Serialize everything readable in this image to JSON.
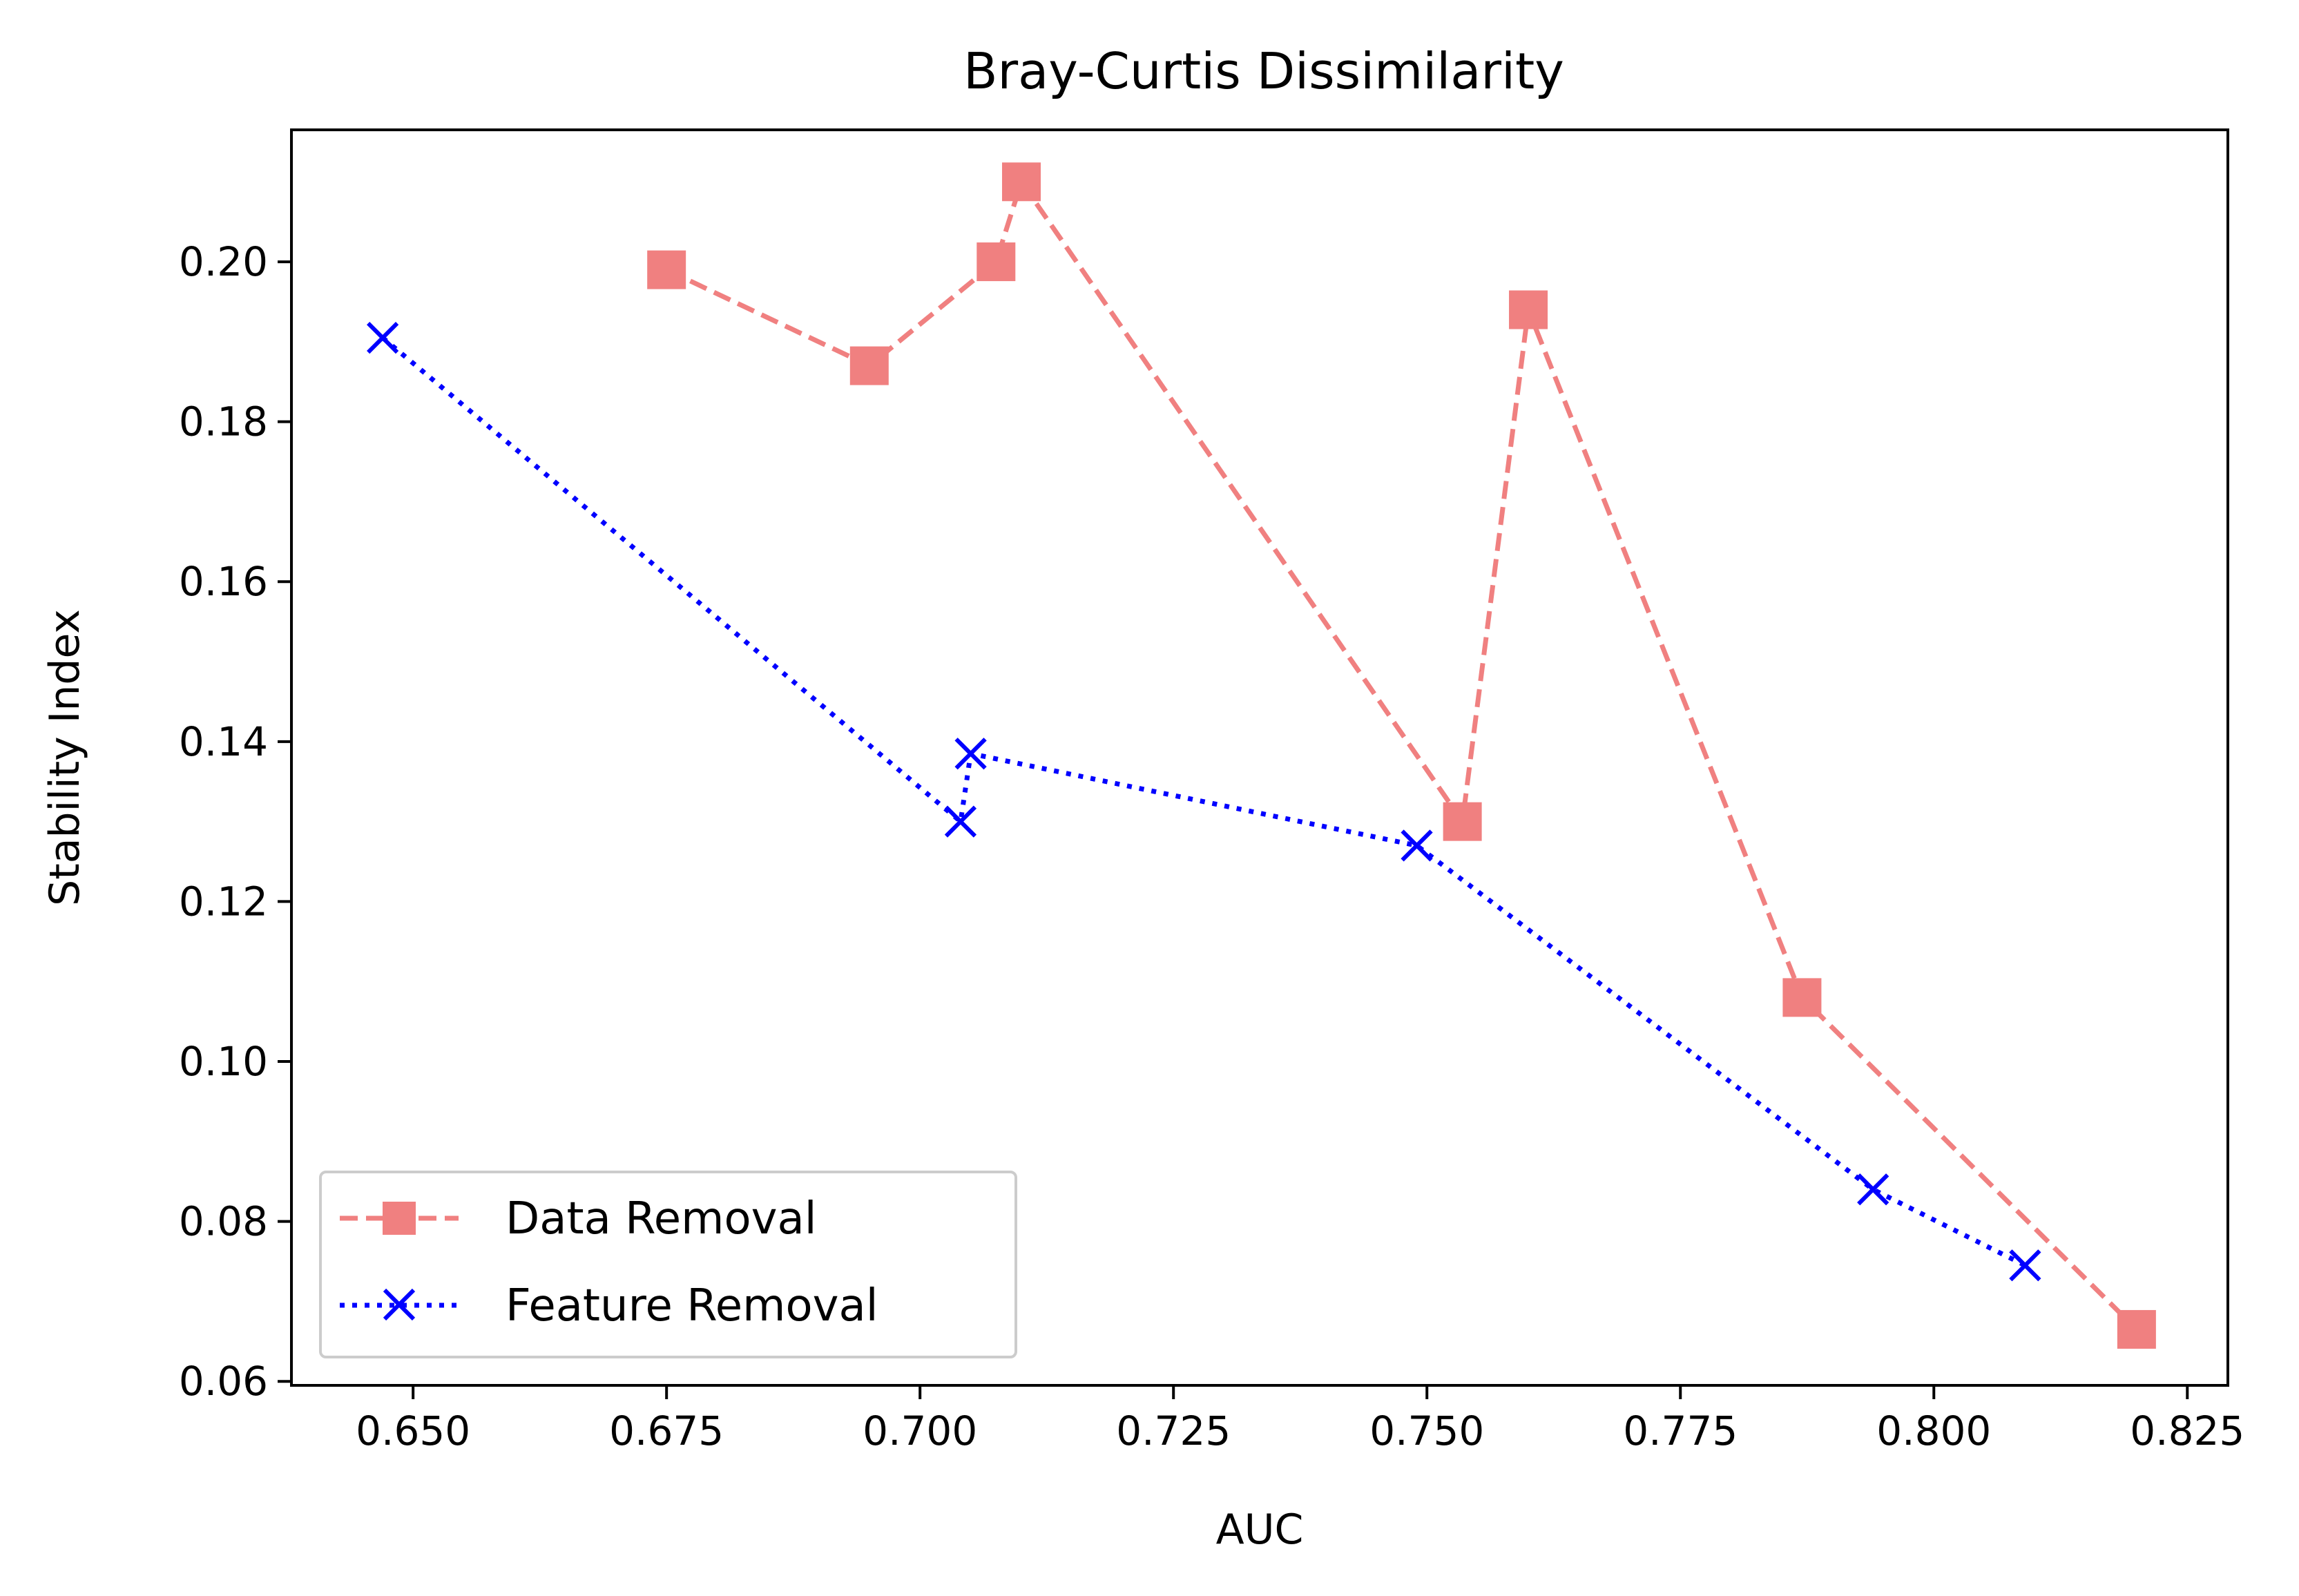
{
  "chart_data": {
    "type": "line",
    "title": "Bray-Curtis Dissimilarity",
    "xlabel": "AUC",
    "ylabel": "Stability Index",
    "xlim": [
      0.638,
      0.829
    ],
    "ylim": [
      0.0595,
      0.2165
    ],
    "xticks": [
      "0.650",
      "0.675",
      "0.700",
      "0.725",
      "0.750",
      "0.775",
      "0.800",
      "0.825"
    ],
    "yticks": [
      "0.06",
      "0.08",
      "0.10",
      "0.12",
      "0.14",
      "0.16",
      "0.18",
      "0.20"
    ],
    "grid": false,
    "legend_position": "lower-left",
    "series": [
      {
        "name": "Data Removal",
        "color": "#f08080",
        "line_style": "dashed",
        "marker": "square",
        "x": [
          0.675,
          0.695,
          0.7075,
          0.71,
          0.7535,
          0.76,
          0.787,
          0.82
        ],
        "y": [
          0.199,
          0.187,
          0.2,
          0.21,
          0.13,
          0.194,
          0.108,
          0.0665
        ]
      },
      {
        "name": "Feature Removal",
        "color": "#0000ff",
        "line_style": "dotted",
        "marker": "x",
        "x": [
          0.647,
          0.704,
          0.705,
          0.749,
          0.794,
          0.809
        ],
        "y": [
          0.1905,
          0.13,
          0.1385,
          0.127,
          0.084,
          0.0745
        ]
      }
    ]
  }
}
